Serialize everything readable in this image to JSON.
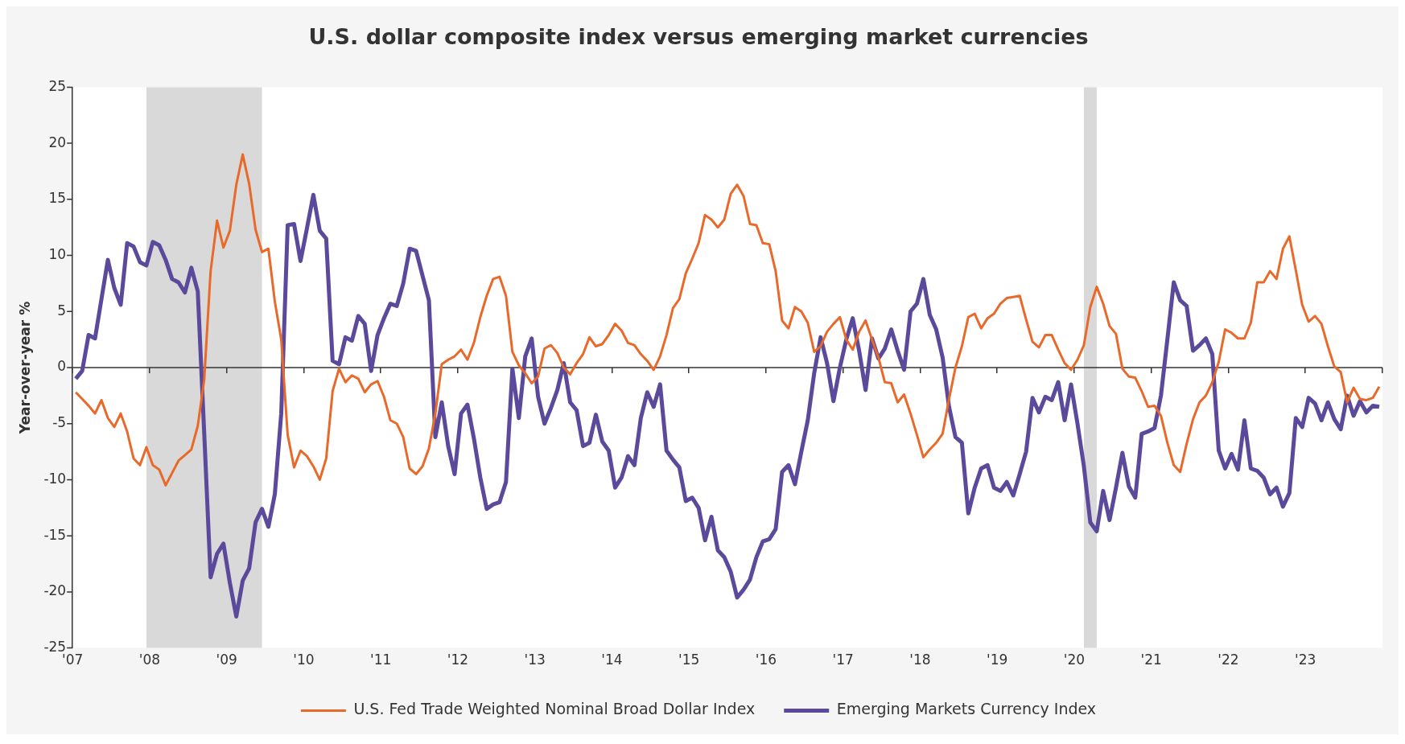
{
  "chart_data": {
    "type": "line",
    "title": "U.S. dollar composite index versus emerging market currencies",
    "ylabel": "Year-over-year %",
    "x": [
      "2007-01",
      "2007-02",
      "2007-03",
      "2007-04",
      "2007-05",
      "2007-06",
      "2007-07",
      "2007-08",
      "2007-09",
      "2007-10",
      "2007-11",
      "2007-12",
      "2008-01",
      "2008-02",
      "2008-03",
      "2008-04",
      "2008-05",
      "2008-06",
      "2008-07",
      "2008-08",
      "2008-09",
      "2008-10",
      "2008-11",
      "2008-12",
      "2009-01",
      "2009-02",
      "2009-03",
      "2009-04",
      "2009-05",
      "2009-06",
      "2009-07",
      "2009-08",
      "2009-09",
      "2009-10",
      "2009-11",
      "2009-12",
      "2010-01",
      "2010-02",
      "2010-03",
      "2010-04",
      "2010-05",
      "2010-06",
      "2010-07",
      "2010-08",
      "2010-09",
      "2010-10",
      "2010-11",
      "2010-12",
      "2011-01",
      "2011-02",
      "2011-03",
      "2011-04",
      "2011-05",
      "2011-06",
      "2011-07",
      "2011-08",
      "2011-09",
      "2011-10",
      "2011-11",
      "2011-12",
      "2012-01",
      "2012-02",
      "2012-03",
      "2012-04",
      "2012-05",
      "2012-06",
      "2012-07",
      "2012-08",
      "2012-09",
      "2012-10",
      "2012-11",
      "2012-12",
      "2013-01",
      "2013-02",
      "2013-03",
      "2013-04",
      "2013-05",
      "2013-06",
      "2013-07",
      "2013-08",
      "2013-09",
      "2013-10",
      "2013-11",
      "2013-12",
      "2014-01",
      "2014-02",
      "2014-03",
      "2014-04",
      "2014-05",
      "2014-06",
      "2014-07",
      "2014-08",
      "2014-09",
      "2014-10",
      "2014-11",
      "2014-12",
      "2015-01",
      "2015-02",
      "2015-03",
      "2015-04",
      "2015-05",
      "2015-06",
      "2015-07",
      "2015-08",
      "2015-09",
      "2015-10",
      "2015-11",
      "2015-12",
      "2016-01",
      "2016-02",
      "2016-03",
      "2016-04",
      "2016-05",
      "2016-06",
      "2016-07",
      "2016-08",
      "2016-09",
      "2016-10",
      "2016-11",
      "2016-12",
      "2017-01",
      "2017-02",
      "2017-03",
      "2017-04",
      "2017-05",
      "2017-06",
      "2017-07",
      "2017-08",
      "2017-09",
      "2017-10",
      "2017-11",
      "2017-12",
      "2018-01",
      "2018-02",
      "2018-03",
      "2018-04",
      "2018-05",
      "2018-06",
      "2018-07",
      "2018-08",
      "2018-09",
      "2018-10",
      "2018-11",
      "2018-12",
      "2019-01",
      "2019-02",
      "2019-03",
      "2019-04",
      "2019-05",
      "2019-06",
      "2019-07",
      "2019-08",
      "2019-09",
      "2019-10",
      "2019-11",
      "2019-12",
      "2020-01",
      "2020-02",
      "2020-03",
      "2020-04",
      "2020-05",
      "2020-06",
      "2020-07",
      "2020-08",
      "2020-09",
      "2020-10",
      "2020-11",
      "2020-12",
      "2021-01",
      "2021-02",
      "2021-03",
      "2021-04",
      "2021-05",
      "2021-06",
      "2021-07",
      "2021-08",
      "2021-09",
      "2021-10",
      "2021-11",
      "2021-12",
      "2022-01",
      "2022-02",
      "2022-03",
      "2022-04",
      "2022-05",
      "2022-06",
      "2022-07",
      "2022-08",
      "2022-09",
      "2022-10",
      "2022-11",
      "2022-12",
      "2023-01",
      "2023-02",
      "2023-03",
      "2023-04",
      "2023-05",
      "2023-06",
      "2023-07",
      "2023-08",
      "2023-09",
      "2023-10",
      "2023-11",
      "2023-12"
    ],
    "series": [
      {
        "name": "U.S. Fed Trade Weighted Nominal Broad Dollar Index",
        "color": "#e8692a",
        "values": [
          -2.2,
          -2.8,
          -3.4,
          -4.1,
          -2.9,
          -4.5,
          -5.3,
          -4.1,
          -5.7,
          -8.1,
          -8.7,
          -7.1,
          -8.7,
          -9.1,
          -10.5,
          -9.4,
          -8.3,
          -7.8,
          -7.3,
          -5.2,
          -1.1,
          8.6,
          13.1,
          10.7,
          12.2,
          16.3,
          19.0,
          16.4,
          12.3,
          10.3,
          10.6,
          5.9,
          2.5,
          -6.0,
          -8.9,
          -7.4,
          -7.9,
          -8.8,
          -10.0,
          -8.1,
          -2.1,
          -0.1,
          -1.3,
          -0.7,
          -1.0,
          -2.2,
          -1.5,
          -1.2,
          -2.6,
          -4.7,
          -5.0,
          -6.2,
          -9.0,
          -9.5,
          -8.8,
          -7.2,
          -4.1,
          0.3,
          0.7,
          1.0,
          1.6,
          0.7,
          2.2,
          4.5,
          6.4,
          7.9,
          8.1,
          6.4,
          1.4,
          0.2,
          -0.5,
          -1.4,
          -0.8,
          1.7,
          2.0,
          1.3,
          0.0,
          -0.6,
          0.4,
          1.2,
          2.7,
          1.9,
          2.1,
          2.9,
          3.9,
          3.3,
          2.2,
          2.0,
          1.2,
          0.6,
          -0.2,
          1.0,
          2.9,
          5.3,
          6.1,
          8.4,
          9.7,
          11.1,
          13.6,
          13.2,
          12.5,
          13.2,
          15.5,
          16.3,
          15.3,
          12.8,
          12.7,
          11.1,
          11.0,
          8.6,
          4.2,
          3.5,
          5.4,
          5.0,
          4.0,
          1.4,
          1.9,
          3.2,
          3.9,
          4.5,
          2.5,
          1.6,
          3.2,
          4.2,
          2.5,
          0.9,
          -1.3,
          -1.4,
          -3.1,
          -2.4,
          -4.1,
          -6.0,
          -8.0,
          -7.3,
          -6.7,
          -5.9,
          -2.8,
          0.0,
          1.9,
          4.5,
          4.8,
          3.5,
          4.4,
          4.8,
          5.7,
          6.2,
          6.3,
          6.4,
          4.3,
          2.3,
          1.8,
          2.9,
          2.9,
          1.6,
          0.4,
          -0.2,
          0.7,
          2.0,
          5.4,
          7.2,
          5.7,
          3.7,
          3.0,
          -0.1,
          -0.8,
          -0.9,
          -2.1,
          -3.5,
          -3.4,
          -4.3,
          -6.7,
          -8.7,
          -9.3,
          -6.8,
          -4.6,
          -3.1,
          -2.5,
          -1.3,
          0.5,
          3.4,
          3.1,
          2.6,
          2.6,
          4.0,
          7.6,
          7.6,
          8.6,
          7.9,
          10.6,
          11.7,
          8.7,
          5.6,
          4.1,
          4.6,
          3.9,
          1.9,
          0.1,
          -0.4,
          -3.1,
          -1.8,
          -2.8,
          -2.9,
          -2.7,
          -1.7
        ]
      },
      {
        "name": "Emerging Markets Currency Index",
        "color": "#5b4a9b",
        "values": [
          -1.0,
          -0.3,
          2.9,
          2.6,
          6.1,
          9.6,
          7.1,
          5.6,
          11.1,
          10.8,
          9.4,
          9.1,
          11.2,
          10.9,
          9.6,
          7.9,
          7.6,
          6.7,
          8.9,
          6.8,
          -5.8,
          -18.7,
          -16.6,
          -15.7,
          -19.2,
          -22.2,
          -19.0,
          -17.9,
          -13.8,
          -12.6,
          -14.2,
          -11.3,
          -4.1,
          12.7,
          12.8,
          9.5,
          12.4,
          15.4,
          12.2,
          11.5,
          0.6,
          0.3,
          2.7,
          2.4,
          4.6,
          3.9,
          -0.3,
          2.9,
          4.4,
          5.7,
          5.5,
          7.5,
          10.6,
          10.4,
          8.2,
          6.0,
          -6.2,
          -3.1,
          -7.0,
          -9.5,
          -4.1,
          -3.3,
          -6.3,
          -9.8,
          -12.6,
          -12.2,
          -12.0,
          -10.2,
          -0.1,
          -4.5,
          1.0,
          2.6,
          -2.6,
          -5.0,
          -3.6,
          -2.0,
          0.4,
          -3.1,
          -3.8,
          -7.0,
          -6.7,
          -4.2,
          -6.6,
          -7.4,
          -10.7,
          -9.8,
          -7.9,
          -8.7,
          -4.5,
          -2.2,
          -3.5,
          -1.5,
          -7.4,
          -8.2,
          -8.9,
          -11.9,
          -11.6,
          -12.5,
          -15.4,
          -13.3,
          -16.3,
          -16.9,
          -18.2,
          -20.5,
          -19.8,
          -18.9,
          -16.9,
          -15.5,
          -15.3,
          -14.4,
          -9.3,
          -8.7,
          -10.4,
          -7.5,
          -4.7,
          -0.5,
          2.7,
          0.4,
          -3.0,
          0.0,
          2.5,
          4.4,
          1.5,
          -2.0,
          2.6,
          0.8,
          1.7,
          3.4,
          1.5,
          -0.2,
          5.0,
          5.7,
          7.9,
          4.7,
          3.4,
          0.9,
          -3.5,
          -6.2,
          -6.7,
          -13.0,
          -10.7,
          -9.0,
          -8.7,
          -10.7,
          -11.0,
          -10.2,
          -11.4,
          -9.5,
          -7.5,
          -2.7,
          -4.0,
          -2.6,
          -2.9,
          -1.3,
          -4.7,
          -1.5,
          -5.0,
          -8.8,
          -13.8,
          -14.6,
          -11.0,
          -13.6,
          -10.7,
          -7.6,
          -10.6,
          -11.6,
          -5.9,
          -5.7,
          -5.4,
          -2.5,
          2.5,
          7.6,
          6.0,
          5.5,
          1.5,
          2.0,
          2.6,
          1.2,
          -7.4,
          -9.0,
          -7.7,
          -9.1,
          -4.7,
          -9.0,
          -9.2,
          -9.8,
          -11.3,
          -10.7,
          -12.4,
          -11.2,
          -4.5,
          -5.3,
          -2.7,
          -3.2,
          -4.7,
          -3.1,
          -4.6,
          -5.5,
          -2.5,
          -4.3,
          -3.0,
          -4.0,
          -3.4,
          -3.5
        ]
      }
    ],
    "xlim": [
      "2007",
      "2024"
    ],
    "xticks": [
      {
        "value": "2007",
        "label": "'07"
      },
      {
        "value": "2008",
        "label": "'08"
      },
      {
        "value": "2009",
        "label": "'09"
      },
      {
        "value": "2010",
        "label": "'10"
      },
      {
        "value": "2011",
        "label": "'11"
      },
      {
        "value": "2012",
        "label": "'12"
      },
      {
        "value": "2013",
        "label": "'13"
      },
      {
        "value": "2014",
        "label": "'14"
      },
      {
        "value": "2015",
        "label": "'15"
      },
      {
        "value": "2016",
        "label": "'16"
      },
      {
        "value": "2017",
        "label": "'17"
      },
      {
        "value": "2018",
        "label": "'18"
      },
      {
        "value": "2019",
        "label": "'19"
      },
      {
        "value": "2020",
        "label": "'20"
      },
      {
        "value": "2021",
        "label": "'21"
      },
      {
        "value": "2022",
        "label": "'22"
      },
      {
        "value": "2023",
        "label": "'23"
      },
      {
        "value": "2024",
        "label": null
      }
    ],
    "ylim": [
      -25,
      25
    ],
    "yticks": [
      -25,
      -20,
      -15,
      -10,
      -5,
      0,
      5,
      10,
      15,
      20,
      25
    ],
    "bands": [
      {
        "axis": "x",
        "from": "2007-12",
        "to": "2009-06",
        "color": "#d9d9d9"
      },
      {
        "axis": "x",
        "from": "2020-02",
        "to": "2020-04",
        "color": "#d9d9d9"
      }
    ],
    "ref_lines": [
      {
        "axis": "y",
        "value": 0,
        "color": "#333333"
      }
    ],
    "grid": false,
    "legend": "bottom",
    "marker": "none",
    "line_style": "solid"
  }
}
